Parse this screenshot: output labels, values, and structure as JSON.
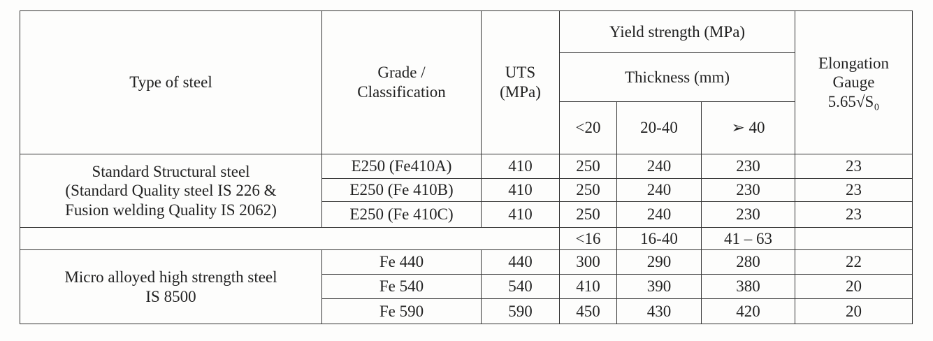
{
  "table": {
    "header": {
      "type_of_steel": "Type of steel",
      "grade": [
        "Grade /",
        "Classification"
      ],
      "uts": [
        "UTS",
        "(MPa)"
      ],
      "yield_strength": "Yield strength (MPa)",
      "thickness": "Thickness (mm)",
      "thickness_ranges": [
        "<20",
        "20-40",
        "➢ 40"
      ],
      "elongation": [
        "Elongation",
        "Gauge"
      ],
      "elongation_formula": "5.65√S₀"
    },
    "groups": [
      {
        "type": [
          "Standard Structural steel",
          "(Standard Quality steel IS 226 &",
          "Fusion welding Quality IS 2062)"
        ],
        "rows": [
          [
            "E250 (Fe410A)",
            410,
            250,
            240,
            230,
            23
          ],
          [
            "E250 (Fe 410B)",
            410,
            250,
            240,
            230,
            23
          ],
          [
            "E250 (Fe 410C)",
            410,
            250,
            240,
            230,
            23
          ]
        ]
      },
      {
        "thickness_ranges": [
          "<16",
          "16-40",
          "41 – 63"
        ]
      },
      {
        "type": [
          "Micro alloyed high strength steel",
          "IS 8500"
        ],
        "rows": [
          [
            "Fe 440",
            440,
            300,
            290,
            280,
            22
          ],
          [
            "Fe 540",
            540,
            410,
            390,
            380,
            20
          ],
          [
            "Fe 590",
            590,
            450,
            430,
            420,
            20
          ]
        ]
      }
    ]
  }
}
